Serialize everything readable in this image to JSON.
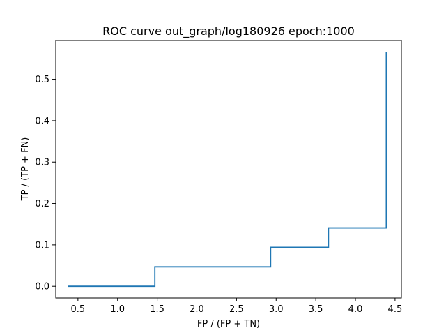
{
  "chart_data": {
    "type": "line",
    "title": "ROC curve out_graph/log180926 epoch:1000",
    "xlabel": "FP / (FP + TN)",
    "ylabel": "TP / (TP + FN)",
    "xlim": [
      0.22,
      4.58
    ],
    "ylim": [
      -0.0283,
      0.5937
    ],
    "grid": false,
    "x_ticks": [
      0.5,
      1.0,
      1.5,
      2.0,
      2.5,
      3.0,
      3.5,
      4.0,
      4.5
    ],
    "x_tick_labels": [
      "0.5",
      "1.0",
      "1.5",
      "2.0",
      "2.5",
      "3.0",
      "3.5",
      "4.0",
      "4.5"
    ],
    "y_ticks": [
      0.0,
      0.1,
      0.2,
      0.3,
      0.4,
      0.5
    ],
    "y_tick_labels": [
      "0.0",
      "0.1",
      "0.2",
      "0.3",
      "0.4",
      "0.5"
    ],
    "series": [
      {
        "color": "#1f77b4",
        "x": [
          0.37,
          1.47,
          1.47,
          2.93,
          2.93,
          3.66,
          3.66,
          4.39,
          4.39
        ],
        "y": [
          0.0,
          0.0,
          0.047,
          0.047,
          0.094,
          0.094,
          0.141,
          0.141,
          0.565
        ]
      }
    ]
  }
}
